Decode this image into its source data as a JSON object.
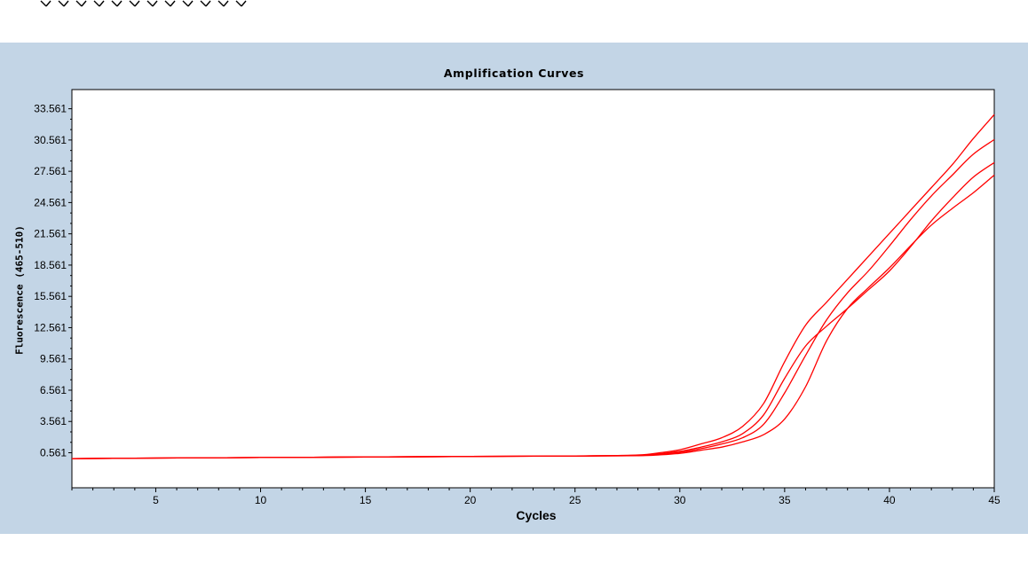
{
  "colors": {
    "panel_background": "#c3d5e6",
    "plot_background": "#ffffff",
    "curve": "#ff0000",
    "top_marks": "#000000"
  },
  "chart_data": {
    "type": "line",
    "title": "Amplification Curves",
    "xlabel": "Cycles",
    "ylabel": "Fluorescence (465-510)",
    "xlim": [
      1,
      45
    ],
    "ylim": [
      -2.8,
      35.4
    ],
    "x_ticks": [
      5,
      10,
      15,
      20,
      25,
      30,
      35,
      40,
      45
    ],
    "y_ticks": [
      0.561,
      3.561,
      6.561,
      9.561,
      12.561,
      15.561,
      18.561,
      21.561,
      24.561,
      27.561,
      30.561,
      33.561
    ],
    "x_tick_labels": [
      "5",
      "10",
      "15",
      "20",
      "25",
      "30",
      "35",
      "40",
      "45"
    ],
    "y_tick_labels": [
      "0.561",
      "3.561",
      "6.561",
      "9.561",
      "12.561",
      "15.561",
      "18.561",
      "21.561",
      "24.561",
      "27.561",
      "30.561",
      "33.561"
    ],
    "grid": false,
    "legend": "none",
    "x": [
      1,
      5,
      10,
      15,
      20,
      25,
      28,
      29,
      30,
      31,
      32,
      33,
      34,
      35,
      36,
      37,
      38,
      39,
      40,
      41,
      42,
      43,
      44,
      45
    ],
    "series": [
      {
        "values": [
          0.0,
          0.05,
          0.1,
          0.15,
          0.2,
          0.25,
          0.35,
          0.55,
          0.85,
          1.4,
          2.0,
          3.1,
          5.3,
          9.3,
          12.8,
          15.0,
          17.2,
          19.4,
          21.6,
          23.8,
          26.0,
          28.2,
          30.7,
          33.0
        ]
      },
      {
        "values": [
          0.0,
          0.05,
          0.1,
          0.15,
          0.2,
          0.25,
          0.3,
          0.45,
          0.7,
          1.1,
          1.6,
          2.4,
          4.2,
          7.7,
          10.8,
          12.7,
          14.4,
          16.2,
          18.0,
          20.3,
          22.8,
          25.0,
          27.0,
          28.4
        ]
      },
      {
        "values": [
          0.0,
          0.05,
          0.1,
          0.15,
          0.2,
          0.25,
          0.3,
          0.4,
          0.6,
          0.95,
          1.4,
          2.0,
          3.3,
          6.3,
          9.9,
          13.3,
          15.9,
          18.0,
          20.4,
          22.9,
          25.2,
          27.2,
          29.2,
          30.6
        ]
      },
      {
        "values": [
          0.0,
          0.05,
          0.1,
          0.15,
          0.2,
          0.25,
          0.28,
          0.35,
          0.5,
          0.8,
          1.1,
          1.6,
          2.3,
          3.8,
          6.9,
          11.3,
          14.4,
          16.4,
          18.3,
          20.4,
          22.4,
          24.0,
          25.5,
          27.2
        ]
      }
    ]
  }
}
